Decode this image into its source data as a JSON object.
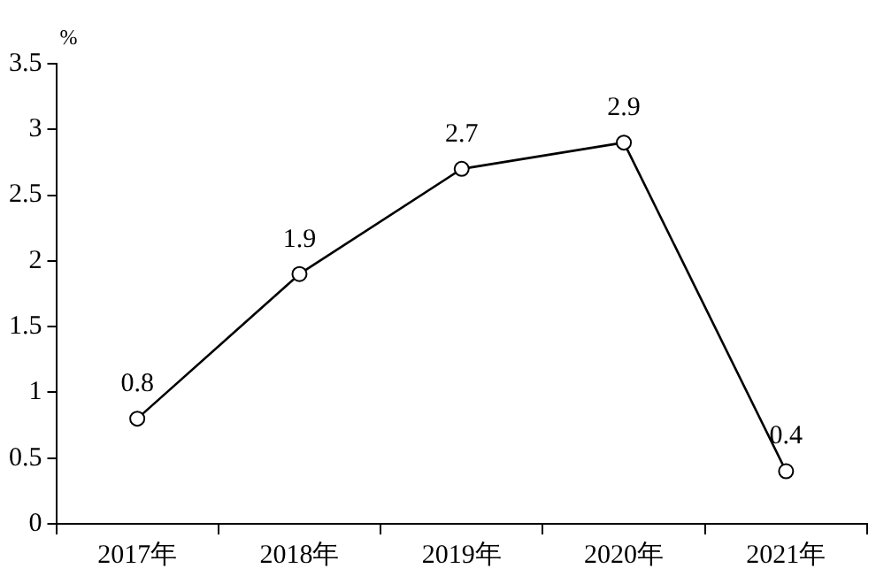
{
  "chart_data": {
    "type": "line",
    "ylabel": "%",
    "categories": [
      "2017年",
      "2018年",
      "2019年",
      "2020年",
      "2021年"
    ],
    "series": [
      {
        "color": "#000000",
        "values": [
          0.8,
          1.9,
          2.7,
          2.9,
          0.4
        ]
      }
    ],
    "ylim": [
      0,
      3.5
    ],
    "yticks": [
      0,
      0.5,
      1,
      1.5,
      2,
      2.5,
      3,
      3.5
    ],
    "grid": false,
    "legend": false,
    "marker": "circle",
    "line_style": "solid",
    "data_labels": true
  }
}
